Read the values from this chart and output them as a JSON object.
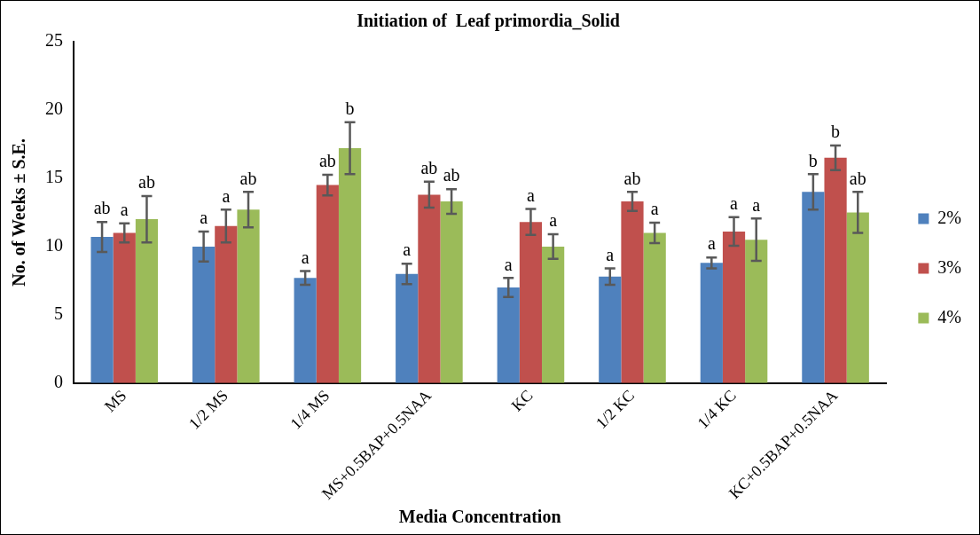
{
  "chart_data": {
    "type": "bar",
    "title": "Initiation of  Leaf primordia_Solid",
    "xlabel": "Media Concentration",
    "ylabel": "No. of Weeks ± S.E.",
    "categories": [
      "MS",
      "1/2 MS",
      "1/4 MS",
      "MS+0.5BAP+0.5NAA",
      "KC",
      "1/2 KC",
      "1/4 KC",
      "KC+0.5BAP+0.5NAA"
    ],
    "series": [
      {
        "name": "2%",
        "color": "#4f81bd",
        "values": [
          10.7,
          10,
          7.7,
          8,
          7,
          7.8,
          8.8,
          14
        ],
        "errors": [
          1.1,
          1.1,
          0.5,
          0.75,
          0.7,
          0.6,
          0.4,
          1.3
        ],
        "value_labels": [
          "ab",
          "a",
          "a",
          "a",
          "a",
          "a",
          "a",
          "b"
        ]
      },
      {
        "name": "3%",
        "color": "#c0504d",
        "values": [
          11,
          11.5,
          14.5,
          13.8,
          11.8,
          13.3,
          11.1,
          16.5
        ],
        "errors": [
          0.7,
          1.2,
          0.75,
          0.95,
          0.95,
          0.7,
          1.05,
          0.9
        ],
        "value_labels": [
          "a",
          "a",
          "ab",
          "ab",
          "a",
          "ab",
          "a",
          "b"
        ]
      },
      {
        "name": "4%",
        "color": "#9bbb59",
        "values": [
          12,
          12.7,
          17.2,
          13.3,
          10,
          11,
          10.5,
          12.5
        ],
        "errors": [
          1.7,
          1.3,
          1.9,
          0.9,
          0.9,
          0.75,
          1.55,
          1.5
        ],
        "value_labels": [
          "ab",
          "ab",
          "b",
          "ab",
          "a",
          "a",
          "a",
          "ab"
        ]
      }
    ],
    "ylim": [
      0,
      25
    ],
    "yticks": [
      0,
      5,
      10,
      15,
      20,
      25
    ],
    "grid": false,
    "legend": "right"
  }
}
